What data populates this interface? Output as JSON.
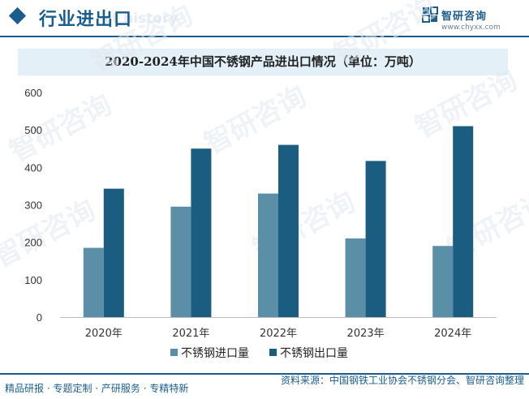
{
  "header": {
    "section_title": "行业进出口",
    "ghost_title": "ct history",
    "brand_name": "智研咨询",
    "brand_url": "www.chyxx.com"
  },
  "watermark_text": "智研咨询",
  "chart_data": {
    "type": "bar",
    "title": "2020-2024年中国不锈钢产品进出口情况（单位：万吨）",
    "categories": [
      "2020年",
      "2021年",
      "2022年",
      "2023年",
      "2024年"
    ],
    "series": [
      {
        "name": "不锈钢进口量",
        "color": "#5b8fa8",
        "values": [
          185,
          295,
          330,
          210,
          190
        ]
      },
      {
        "name": "不锈钢出口量",
        "color": "#1a5d80",
        "values": [
          343,
          450,
          460,
          417,
          510
        ]
      }
    ],
    "ylim": [
      0,
      600
    ],
    "yticks": [
      0,
      100,
      200,
      300,
      400,
      500,
      600
    ],
    "xlabel": "",
    "ylabel": ""
  },
  "footer": {
    "left": "精品研报 · 专题定制 · 产研服务 · 专精特新",
    "right": "资料来源：中国钢铁工业协会不锈钢分会、智研咨询整理"
  }
}
